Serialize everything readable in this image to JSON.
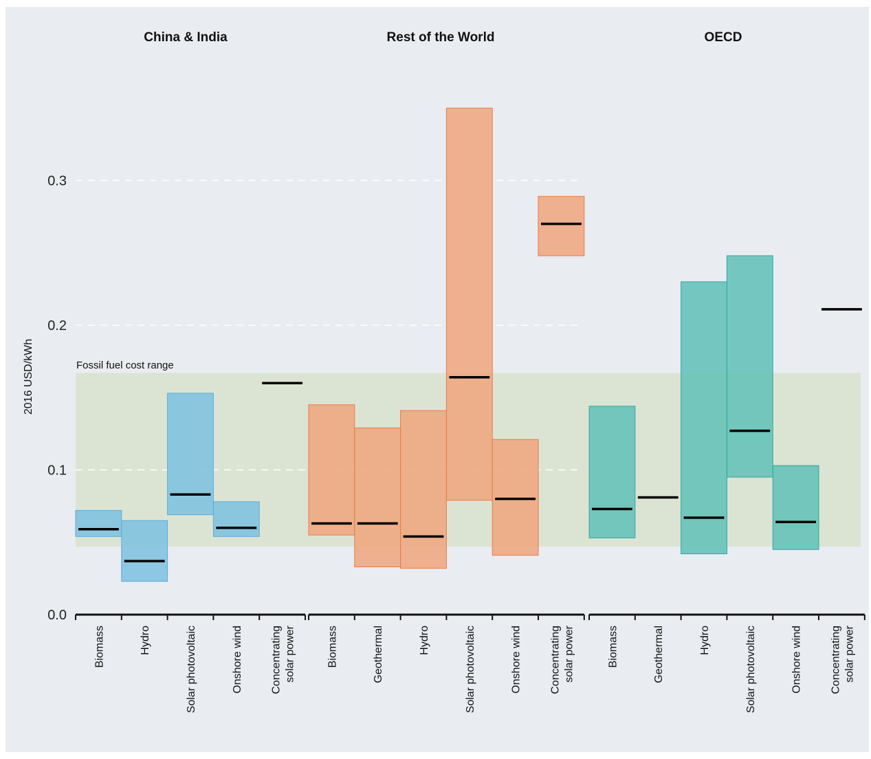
{
  "colors": {
    "background": "#e9ecf1",
    "china_india": "#7fc1e0",
    "china_india_edge": "#5aabd6",
    "rest_of_world": "#eea77f",
    "rest_of_world_edge": "#ea7a45",
    "oecd": "#63c2b8",
    "oecd_edge": "#2fa79d",
    "fossil_band": "#d9e3cf",
    "average": "#000000",
    "axis": "#111111",
    "gridline": "#ffffff"
  },
  "chart_data": {
    "type": "bar",
    "subtype": "floating-range-with-average",
    "ylabel": "2016 USD/kWh",
    "ylim": [
      0,
      0.4
    ],
    "yticks": [
      {
        "value": 0.0,
        "label": "0.0"
      },
      {
        "value": 0.1,
        "label": "0.1"
      },
      {
        "value": 0.2,
        "label": "0.2"
      },
      {
        "value": 0.3,
        "label": "0.3"
      }
    ],
    "grid": "dashed horizontal lines at ticks (left part)",
    "fossil_band": {
      "label": "Fossil fuel cost range",
      "min": 0.047,
      "max": 0.167
    },
    "groups": [
      {
        "name": "China & India",
        "color_key": "china_india",
        "categories": [
          {
            "label": "Biomass",
            "min": 0.054,
            "max": 0.072,
            "avg": 0.059
          },
          {
            "label": "Hydro",
            "min": 0.023,
            "max": 0.065,
            "avg": 0.037
          },
          {
            "label": "Solar photovoltaic",
            "min": 0.069,
            "max": 0.153,
            "avg": 0.083
          },
          {
            "label": "Onshore wind",
            "min": 0.054,
            "max": 0.078,
            "avg": 0.06
          },
          {
            "label": "Concentrating solar power",
            "min": null,
            "max": null,
            "avg": 0.16
          }
        ]
      },
      {
        "name": "Rest of the World",
        "color_key": "rest_of_world",
        "categories": [
          {
            "label": "Biomass",
            "min": 0.055,
            "max": 0.145,
            "avg": 0.063
          },
          {
            "label": "Geothermal",
            "min": 0.033,
            "max": 0.129,
            "avg": 0.063
          },
          {
            "label": "Hydro",
            "min": 0.032,
            "max": 0.141,
            "avg": 0.054
          },
          {
            "label": "Solar photovoltaic",
            "min": 0.079,
            "max": 0.35,
            "avg": 0.164
          },
          {
            "label": "Onshore wind",
            "min": 0.041,
            "max": 0.121,
            "avg": 0.08
          },
          {
            "label": "Concentrating solar power",
            "min": 0.248,
            "max": 0.289,
            "avg": 0.27
          }
        ]
      },
      {
        "name": "OECD",
        "color_key": "oecd",
        "categories": [
          {
            "label": "Biomass",
            "min": 0.053,
            "max": 0.144,
            "avg": 0.073
          },
          {
            "label": "Geothermal",
            "min": null,
            "max": null,
            "avg": 0.081
          },
          {
            "label": "Hydro",
            "min": 0.042,
            "max": 0.23,
            "avg": 0.067
          },
          {
            "label": "Solar photovoltaic",
            "min": 0.095,
            "max": 0.248,
            "avg": 0.127
          },
          {
            "label": "Onshore wind",
            "min": 0.045,
            "max": 0.103,
            "avg": 0.064
          },
          {
            "label": "Concentrating solar power",
            "min": null,
            "max": null,
            "avg": 0.211
          }
        ]
      }
    ]
  }
}
